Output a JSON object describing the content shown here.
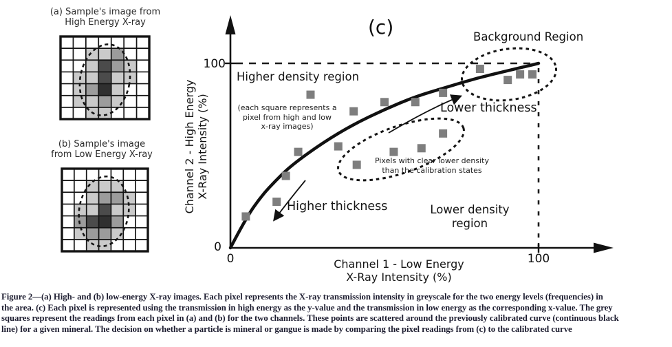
{
  "panel_a": {
    "title": "(a) Sample's image from\nHigh Energy X-ray",
    "grid": [
      [
        0,
        0,
        0,
        0,
        0,
        0,
        0
      ],
      [
        0,
        0,
        1,
        1,
        2,
        0,
        0
      ],
      [
        0,
        0,
        1,
        3,
        2,
        1,
        0
      ],
      [
        0,
        1,
        1,
        3,
        1,
        1,
        0
      ],
      [
        0,
        1,
        2,
        4,
        1,
        0,
        0
      ],
      [
        0,
        1,
        1,
        2,
        1,
        0,
        0
      ],
      [
        0,
        0,
        1,
        1,
        0,
        0,
        0
      ]
    ]
  },
  "panel_b": {
    "title": "(b) Sample's image\nfrom Low Energy X-ray",
    "grid": [
      [
        0,
        0,
        0,
        0,
        0,
        0,
        0
      ],
      [
        0,
        0,
        1,
        1,
        1,
        0,
        0
      ],
      [
        0,
        0,
        1,
        2,
        2,
        1,
        0
      ],
      [
        0,
        1,
        1,
        3,
        1,
        1,
        0
      ],
      [
        0,
        2,
        3,
        4,
        2,
        0,
        0
      ],
      [
        0,
        1,
        2,
        2,
        1,
        0,
        0
      ],
      [
        0,
        0,
        1,
        1,
        0,
        0,
        0
      ]
    ]
  },
  "chart_data": {
    "type": "scatter",
    "panel_label": "(c)",
    "xlabel": "Channel 1 - Low Energy\nX-Ray Intensity (%)",
    "ylabel": "Channel 2 - High Energy\nX-Ray Intensity (%)",
    "xlim": [
      0,
      125
    ],
    "ylim": [
      0,
      126
    ],
    "x_ticks": [
      0,
      100
    ],
    "y_ticks": [
      0,
      100
    ],
    "grid": "off",
    "points": [
      [
        5,
        17
      ],
      [
        15,
        25
      ],
      [
        18,
        39
      ],
      [
        22,
        52
      ],
      [
        26,
        83
      ],
      [
        35,
        55
      ],
      [
        40,
        74
      ],
      [
        41,
        45
      ],
      [
        50,
        79
      ],
      [
        53,
        52
      ],
      [
        60,
        79
      ],
      [
        62,
        54
      ],
      [
        69,
        62
      ],
      [
        69,
        84
      ],
      [
        81,
        97
      ],
      [
        90,
        91
      ],
      [
        94,
        94
      ],
      [
        98,
        94
      ]
    ],
    "calibration_curve": {
      "description": "previously calibrated curve (continuous black line)",
      "points": [
        [
          0,
          0
        ],
        [
          5,
          16
        ],
        [
          10,
          28
        ],
        [
          15,
          37
        ],
        [
          20,
          45
        ],
        [
          30,
          57
        ],
        [
          40,
          67
        ],
        [
          50,
          75
        ],
        [
          60,
          82
        ],
        [
          70,
          87
        ],
        [
          80,
          92
        ],
        [
          90,
          96
        ],
        [
          100,
          100
        ]
      ]
    },
    "reference_lines": {
      "horizontal_at_y": 100,
      "vertical_at_x": 100,
      "style": "dashed"
    },
    "regions": [
      {
        "name": "background-region",
        "shape": "dashed ellipse",
        "center_data": [
          90,
          94
        ]
      },
      {
        "name": "lower-density-pixels",
        "shape": "dashed ellipse",
        "center_data": [
          55,
          53
        ]
      }
    ],
    "annotations": {
      "higher_density_region": "Higher density region",
      "square_note": "(each square represents a\npixel from high and low\nx-ray images)",
      "background_region": "Background Region",
      "lower_thickness": "Lower thickness",
      "pixels_note": "Pixels with clear lower density\nthan the calibration states",
      "higher_thickness": "Higher thickness",
      "lower_density_region": "Lower density\nregion"
    },
    "colors": {
      "point_fill": "#7e7e7e",
      "curve": "#111111",
      "grid_shades": {
        "0": "#ffffff",
        "1": "#cacaca",
        "2": "#9c9c9c",
        "3": "#4b4b4b",
        "4": "#303030"
      }
    }
  },
  "caption": {
    "lines": [
      "Figure 2—(a) High- and (b) low-energy X-ray images. Each pixel represents the X-ray transmission intensity in greyscale for the two energy levels (frequencies) in",
      "the area. (c) Each pixel is represented using the transmission in high energy as the y-value and the transmission in low energy as the corresponding x-value. The grey",
      "squares represent the readings from each pixel in (a) and (b) for the two channels. These points are scattered around the previously calibrated curve (continuous black",
      "line) for a given mineral. The decision on whether a particle is mineral or gangue is made by comparing the pixel readings from (c) to the calibrated curve"
    ]
  }
}
